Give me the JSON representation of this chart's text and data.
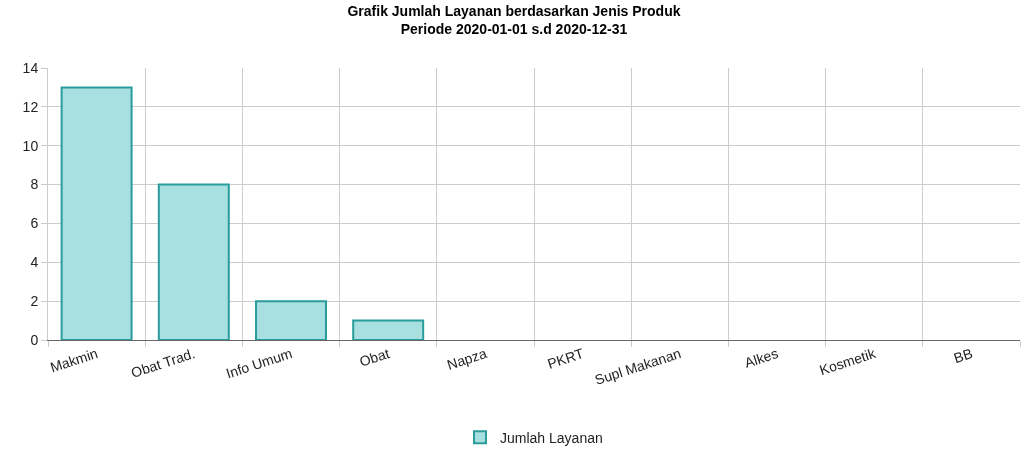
{
  "chart_data": {
    "type": "bar",
    "title": "Grafik Jumlah Layanan berdasarkan Jenis Produk\nPeriode 2020-01-01 s.d 2020-12-31",
    "categories": [
      "Makmin",
      "Obat Trad.",
      "Info Umum",
      "Obat",
      "Napza",
      "PKRT",
      "Supl Makanan",
      "Alkes",
      "Kosmetik",
      "BB"
    ],
    "series": [
      {
        "name": "Jumlah Layanan",
        "color": "#a8dfe0",
        "values": [
          13,
          8,
          2,
          1,
          0,
          0,
          0,
          0,
          0,
          0
        ]
      }
    ],
    "ylim": [
      0,
      14
    ],
    "yticks": [
      0,
      2,
      4,
      6,
      8,
      10,
      12,
      14
    ],
    "grid": true,
    "legend": "bottom"
  }
}
